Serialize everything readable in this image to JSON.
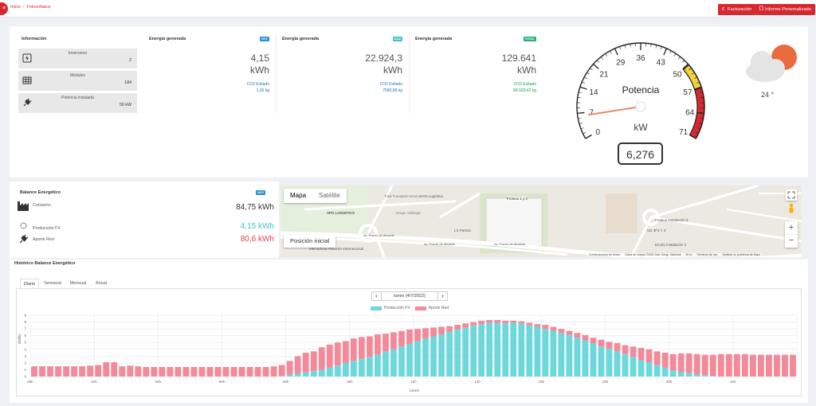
{
  "header": {
    "breadcrumb_home": "Inicio",
    "breadcrumb_sep": "/",
    "breadcrumb_current": "Fotovoltaica",
    "menu_glyph": "≡",
    "btn_billing": "Facturación",
    "btn_billing_icon": "€",
    "btn_report": "Informe Personalizado"
  },
  "info": {
    "title": "Información",
    "rows": [
      {
        "label": "Inversores",
        "value": "2",
        "icon": "inverter-icon"
      },
      {
        "label": "Módulos",
        "value": "184",
        "icon": "solar-panel-icon"
      },
      {
        "label": "Potencia instalada",
        "value": "50 kW",
        "icon": "plug-icon"
      }
    ]
  },
  "energy_cards": [
    {
      "title": "Energía generada",
      "badge": "HOY",
      "badge_color": "#2b8fd6",
      "value": "4,15",
      "unit": "kWh",
      "co2_label": "CO2 Evitado",
      "co2_value": "1,26 kg",
      "co2_color": "#2b6fb5"
    },
    {
      "title": "Energía generada",
      "badge": "2022",
      "badge_color": "#3fc2c9",
      "value": "22.924,3",
      "unit": "kWh",
      "co2_label": "CO2 Evitado",
      "co2_value": "7090,68 kg",
      "co2_color": "#2b6fb5"
    },
    {
      "title": "Energía generada",
      "badge": "TOTAL",
      "badge_color": "#2bb37a",
      "value": "129.641",
      "unit": "kWh",
      "co2_label": "CO2 Evitado",
      "co2_value": "89.929,43 kg",
      "co2_color": "#1e9b5a"
    }
  ],
  "gauge": {
    "title": "Potencia",
    "unit": "kW",
    "value": "6,276",
    "value_num": 6.276,
    "max": 71,
    "ticks": [
      "0",
      "7",
      "14",
      "21",
      "29",
      "36",
      "43",
      "50",
      "57",
      "64",
      "71"
    ],
    "yellow_color": "#f2d43a",
    "red_color": "#d7282f"
  },
  "weather": {
    "temp": "24 °",
    "icon": "partly-cloudy-icon"
  },
  "balance": {
    "title": "Balance Energético",
    "badge": "HOY",
    "consumption_label": "Consumo",
    "consumption_value": "84,75 kWh",
    "pv_label": "Producción FV",
    "pv_value": "4,15 kWh",
    "grid_label": "Aporte Red",
    "grid_value": "80,6 kWh"
  },
  "map": {
    "tab_map": "Mapa",
    "tab_satellite": "Satélite",
    "initial_position": "Posición inicial",
    "labels": [
      "Total Transport Service",
      "XPO LOGISTICS",
      "Grupo Vitrilisqe",
      "VCD Logística",
      "Fronius 1 y 2",
      "LX Pantos",
      "Av. Puerto de Alicante",
      "Av. Puerto de Alicante",
      "Av. Puerto de Alicante",
      "Mercadona Almacén Internacional",
      "UD 3F2 Y 3",
      "Fronius Instalación 3",
      "Ercofy Instalación 3"
    ],
    "footer": [
      "Combinaciones de teclas",
      "Datos de mapas ©2022 Inst. Geogr. Nacional",
      "50 m",
      "Términos de uso",
      "Notificar un problema de Maps"
    ]
  },
  "history": {
    "title": "Histórico Balance Energético",
    "tabs": [
      "Diario",
      "Semanal",
      "Mensual",
      "Anual"
    ],
    "date": "lunes (4/7/2022)",
    "prev_glyph": "‹",
    "next_glyph": "›",
    "legend_pv": "Producción FV",
    "legend_grid": "Aporte Red",
    "pv_color": "#6dd8dc",
    "grid_color": "#f28a9a",
    "xlabel": "lunes",
    "ylabel": "(kWh)"
  },
  "chart_data": {
    "type": "bar",
    "stacked": true,
    "ylim": [
      0,
      9
    ],
    "yticks": [
      "0",
      "1",
      "2",
      "3",
      "4",
      "5",
      "6",
      "7",
      "8",
      "9"
    ],
    "xticks": [
      "00h",
      "02h",
      "04h",
      "06h",
      "08h",
      "10h",
      "12h",
      "14h",
      "16h",
      "18h",
      "20h",
      "22h"
    ],
    "xlabel": "lunes",
    "ylabel": "(kWh)",
    "grid": true,
    "legend_placement": "top",
    "series": [
      {
        "name": "Producción FV",
        "color": "#6dd8dc",
        "values": [
          0,
          0,
          0,
          0,
          0,
          0,
          0,
          0,
          0,
          0,
          0,
          0,
          0,
          0,
          0,
          0,
          0,
          0,
          0,
          0,
          0,
          0,
          0,
          0,
          0,
          0,
          0,
          0,
          0,
          0,
          0,
          0.1,
          0.3,
          0.4,
          0.6,
          0.8,
          1,
          1.3,
          1.6,
          2,
          2.3,
          2.6,
          2.9,
          3.2,
          3.7,
          4,
          4.4,
          4.8,
          5.2,
          5.6,
          5.9,
          6.2,
          6.6,
          6.9,
          7.2,
          7.5,
          7.7,
          7.9,
          7.9,
          7.8,
          7.9,
          7.8,
          7.5,
          7.3,
          7,
          6.7,
          6.4,
          6.1,
          5.7,
          5.3,
          4.9,
          4.4,
          4.1,
          3.7,
          3.3,
          2.9,
          2.4,
          2.1,
          1.7,
          1.3,
          0.9,
          0.6,
          0.5,
          0.3,
          0.2,
          0.1,
          0,
          0,
          0,
          0,
          0,
          0,
          0,
          0,
          0,
          0
        ]
      },
      {
        "name": "Aporte Red",
        "color": "#f28a9a",
        "values": [
          1.5,
          1.5,
          1.5,
          1.5,
          1.5,
          1.5,
          1.5,
          1.6,
          1.7,
          2.1,
          2.1,
          1.5,
          1.6,
          1.5,
          1.4,
          1.4,
          1.4,
          1.4,
          1.4,
          1.4,
          1.4,
          1.4,
          1.4,
          1.4,
          1.4,
          1.4,
          1.4,
          1.4,
          1.4,
          1.4,
          1.5,
          1.6,
          2,
          2.6,
          2.9,
          2.9,
          3.3,
          3.4,
          3.4,
          3.2,
          3.3,
          3.2,
          3,
          3,
          2.6,
          2.5,
          2.3,
          2.1,
          1.8,
          1.5,
          1.3,
          1.1,
          0.8,
          0.7,
          0.6,
          0.5,
          0.5,
          0.4,
          0.4,
          0.4,
          0.3,
          0.3,
          0.4,
          0.4,
          0.6,
          0.6,
          0.6,
          0.6,
          0.7,
          0.8,
          0.8,
          1,
          1,
          1.2,
          1.3,
          1.5,
          1.8,
          1.9,
          2,
          2.2,
          2.4,
          2.8,
          2.9,
          3,
          3,
          3.1,
          3.3,
          3.3,
          3.3,
          3.3,
          3.2,
          3.2,
          3.2,
          3.2,
          3.2,
          3.2
        ]
      }
    ]
  }
}
